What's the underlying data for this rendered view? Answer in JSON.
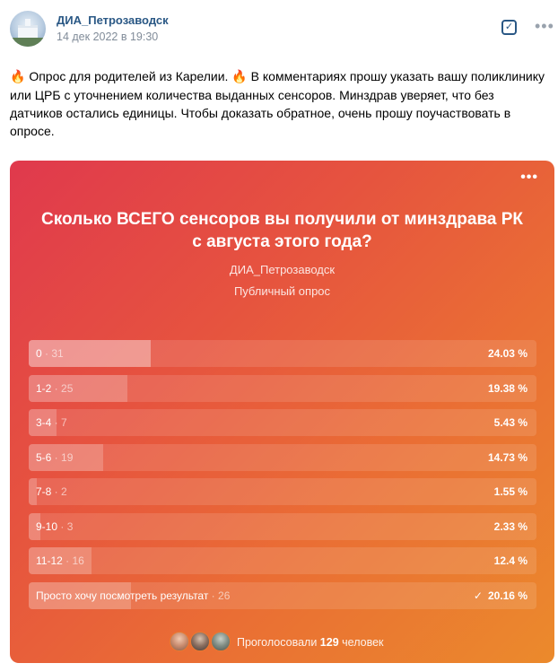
{
  "post": {
    "author": "ДИА_Петрозаводск",
    "date": "14 дек 2022 в 19:30",
    "text_lead": "Опрос для родителей из Карелии.",
    "text_rest": "В комментариях прошу указать вашу поликлинику или ЦРБ с уточнением количества выданных сенсоров. Минздрав уверяет, что без датчиков остались единицы. Чтобы доказать обратное, очень прошу поучаствовать в опросе.",
    "emoji": "🔥"
  },
  "poll": {
    "question": "Сколько ВСЕГО сенсоров вы получили от минздрава РК с августа этого года?",
    "owner": "ДИА_Петрозаводск",
    "type": "Публичный опрос",
    "options": [
      {
        "label": "0",
        "count": "31",
        "percent": "24.03 %",
        "share": 24.03,
        "top": true
      },
      {
        "label": "1-2",
        "count": "25",
        "percent": "19.38 %",
        "share": 19.38
      },
      {
        "label": "3-4",
        "count": "7",
        "percent": "5.43 %",
        "share": 5.43
      },
      {
        "label": "5-6",
        "count": "19",
        "percent": "14.73 %",
        "share": 14.73
      },
      {
        "label": "7-8",
        "count": "2",
        "percent": "1.55 %",
        "share": 1.55
      },
      {
        "label": "9-10",
        "count": "3",
        "percent": "2.33 %",
        "share": 2.33
      },
      {
        "label": "11-12",
        "count": "16",
        "percent": "12.4 %",
        "share": 12.4
      },
      {
        "label": "Просто хочу посмотреть результат",
        "count": "26",
        "percent": "20.16 %",
        "share": 20.16,
        "voted": true
      }
    ],
    "voted_prefix": "Проголосовали",
    "voted_count": "129",
    "voted_suffix": "человек"
  },
  "colors": {
    "link": "#2a5885",
    "muted": "#818c99",
    "poll_start": "#e0394d",
    "poll_end": "#eb8a2c"
  }
}
